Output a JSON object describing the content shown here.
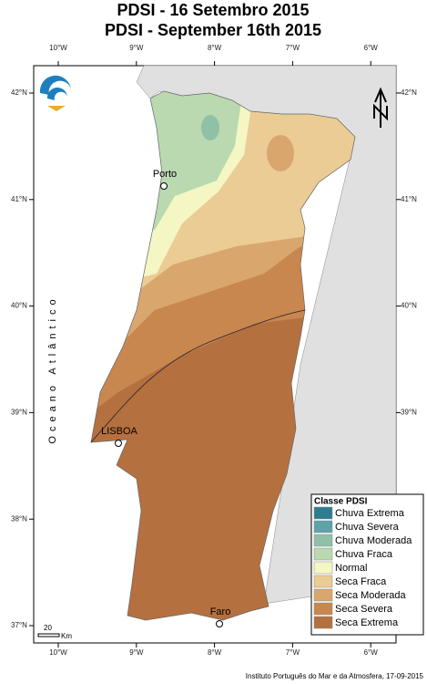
{
  "header": {
    "title_pt": "PDSI - 16 Setembro 2015",
    "title_en": "PDSI - September 16th 2015"
  },
  "graticule": {
    "longitudes": [
      "10°W",
      "9°W",
      "8°W",
      "7°W",
      "6°W"
    ],
    "latitudes": [
      "42°N",
      "41°N",
      "40°N",
      "39°N",
      "38°N",
      "37°N"
    ]
  },
  "places": {
    "ocean": "Oceano Atlântico",
    "cities": [
      "Porto",
      "LISBOA",
      "Faro"
    ]
  },
  "legend": {
    "title": "Classe PDSI",
    "items": [
      {
        "name": "Chuva Extrema",
        "color": "#2e7d8f"
      },
      {
        "name": "Chuva Severa",
        "color": "#5ea3a8"
      },
      {
        "name": "Chuva Moderada",
        "color": "#8fc0a8"
      },
      {
        "name": "Chuva Fraca",
        "color": "#bad9b0"
      },
      {
        "name": "Normal",
        "color": "#f4f7c4"
      },
      {
        "name": "Seca Fraca",
        "color": "#ebcc94"
      },
      {
        "name": "Seca Moderada",
        "color": "#d9a66e"
      },
      {
        "name": "Seca Severa",
        "color": "#c8874f"
      },
      {
        "name": "Seca Extrema",
        "color": "#b5703f"
      }
    ]
  },
  "scale_bar": {
    "distance": "20",
    "unit": "Km"
  },
  "credit": "Instituto Português do Mar e da Atmosfera, 17-09-2015"
}
